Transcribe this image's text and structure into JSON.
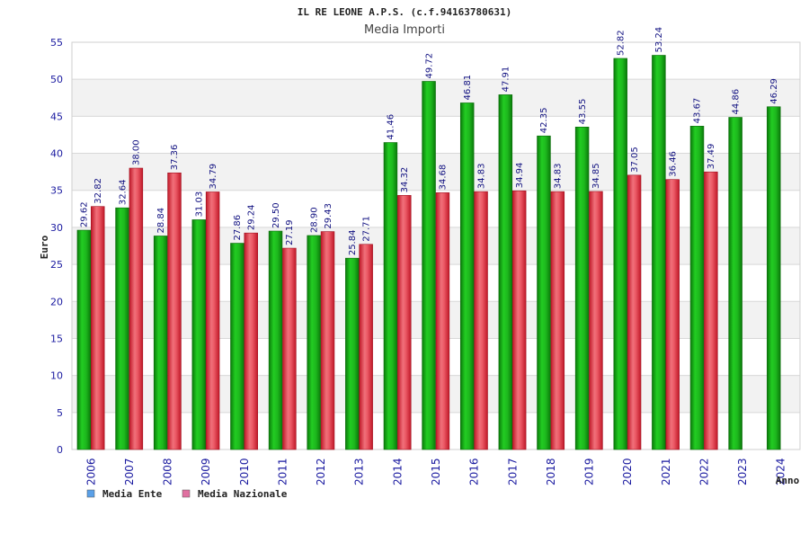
{
  "chart_data": {
    "type": "bar",
    "title": "IL RE LEONE A.P.S. (c.f.94163780631)",
    "subtitle": "Media Importi",
    "xlabel": "Anno",
    "ylabel": "Euro",
    "ylim": [
      0,
      55
    ],
    "yticks": [
      "0",
      "5",
      "10",
      "15",
      "20",
      "25",
      "30",
      "35",
      "40",
      "45",
      "50",
      "55"
    ],
    "grid": true,
    "legend_position": "bottom-left",
    "categories": [
      "2006",
      "2007",
      "2008",
      "2009",
      "2010",
      "2011",
      "2012",
      "2013",
      "2014",
      "2015",
      "2016",
      "2017",
      "2018",
      "2019",
      "2020",
      "2021",
      "2022",
      "2023",
      "2024"
    ],
    "series": [
      {
        "name": "Media Ente",
        "color": "#1fae1f",
        "legend_color": "#5aa0e8",
        "values": [
          29.62,
          32.64,
          28.84,
          31.03,
          27.86,
          29.5,
          28.9,
          25.84,
          41.46,
          49.72,
          46.81,
          47.91,
          42.35,
          43.55,
          52.82,
          53.24,
          43.67,
          44.86,
          46.29
        ],
        "labels": [
          "29.62",
          "32.64",
          "28.84",
          "31.03",
          "27.86",
          "29.50",
          "28.90",
          "25.84",
          "41.46",
          "49.72",
          "46.81",
          "47.91",
          "42.35",
          "43.55",
          "52.82",
          "53.24",
          "43.67",
          "44.86",
          "46.29"
        ]
      },
      {
        "name": "Media Nazionale",
        "color": "#e03040",
        "legend_color": "#e070a0",
        "values": [
          32.82,
          38.0,
          37.36,
          34.79,
          29.24,
          27.19,
          29.43,
          27.71,
          34.32,
          34.68,
          34.83,
          34.94,
          34.83,
          34.85,
          37.05,
          36.46,
          37.49,
          null,
          null
        ],
        "labels": [
          "32.82",
          "38.00",
          "37.36",
          "34.79",
          "29.24",
          "27.19",
          "29.43",
          "27.71",
          "34.32",
          "34.68",
          "34.83",
          "34.94",
          "34.83",
          "34.85",
          "37.05",
          "36.46",
          "37.49",
          null,
          null
        ]
      }
    ]
  }
}
